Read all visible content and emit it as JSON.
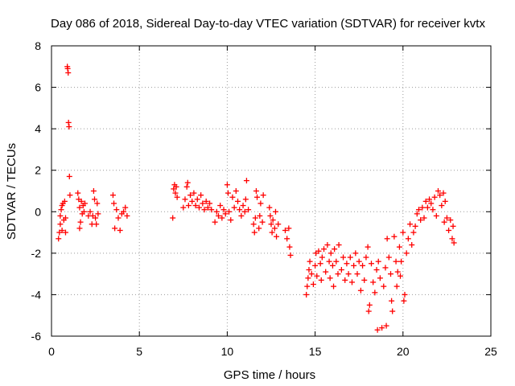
{
  "chart_data": {
    "type": "scatter",
    "title": "Day 086 of 2018, Sidereal Day-to-day VTEC variation (SDTVAR) for receiver kvtx",
    "xlabel": "GPS time / hours",
    "ylabel": "SDTVAR / TECUs",
    "xlim": [
      0,
      25
    ],
    "ylim": [
      -6,
      8
    ],
    "xticks": [
      0,
      5,
      10,
      15,
      20,
      25
    ],
    "yticks": [
      -6,
      -4,
      -2,
      0,
      2,
      4,
      6,
      8
    ],
    "grid": true,
    "marker": "+",
    "color": "#ff0000",
    "series": [
      {
        "name": "SDTVAR",
        "points": [
          [
            0.4,
            -1.3
          ],
          [
            0.45,
            -1.0
          ],
          [
            0.5,
            -0.6
          ],
          [
            0.5,
            -0.2
          ],
          [
            0.55,
            0.1
          ],
          [
            0.6,
            0.3
          ],
          [
            0.6,
            -0.9
          ],
          [
            0.65,
            0.4
          ],
          [
            0.7,
            -0.4
          ],
          [
            0.75,
            0.5
          ],
          [
            0.8,
            -1.0
          ],
          [
            0.8,
            -0.3
          ],
          [
            0.9,
            7.0
          ],
          [
            0.92,
            6.9
          ],
          [
            0.95,
            6.7
          ],
          [
            0.97,
            4.3
          ],
          [
            1.0,
            4.1
          ],
          [
            1.02,
            1.7
          ],
          [
            1.05,
            0.8
          ],
          [
            1.5,
            0.9
          ],
          [
            1.55,
            0.6
          ],
          [
            1.6,
            0.2
          ],
          [
            1.6,
            -0.8
          ],
          [
            1.65,
            -0.5
          ],
          [
            1.7,
            0.5
          ],
          [
            1.75,
            -0.1
          ],
          [
            1.8,
            0.3
          ],
          [
            1.85,
            0.0
          ],
          [
            1.9,
            0.4
          ],
          [
            2.1,
            -0.2
          ],
          [
            2.2,
            0.0
          ],
          [
            2.3,
            -0.6
          ],
          [
            2.35,
            -0.2
          ],
          [
            2.4,
            1.0
          ],
          [
            2.45,
            0.6
          ],
          [
            2.5,
            -0.3
          ],
          [
            2.55,
            -0.6
          ],
          [
            2.6,
            0.4
          ],
          [
            2.65,
            -0.1
          ],
          [
            3.5,
            0.8
          ],
          [
            3.55,
            0.4
          ],
          [
            3.6,
            -0.8
          ],
          [
            3.7,
            0.1
          ],
          [
            3.8,
            -0.3
          ],
          [
            3.9,
            -0.9
          ],
          [
            4.0,
            -0.1
          ],
          [
            4.1,
            0.0
          ],
          [
            4.2,
            0.2
          ],
          [
            4.3,
            -0.2
          ],
          [
            6.9,
            -0.3
          ],
          [
            6.95,
            1.1
          ],
          [
            7.0,
            1.3
          ],
          [
            7.05,
            0.9
          ],
          [
            7.1,
            1.2
          ],
          [
            7.15,
            0.7
          ],
          [
            7.5,
            0.2
          ],
          [
            7.6,
            0.6
          ],
          [
            7.7,
            1.2
          ],
          [
            7.75,
            1.4
          ],
          [
            7.8,
            0.3
          ],
          [
            7.9,
            0.8
          ],
          [
            8.0,
            0.5
          ],
          [
            8.1,
            0.9
          ],
          [
            8.2,
            0.3
          ],
          [
            8.3,
            0.6
          ],
          [
            8.4,
            0.2
          ],
          [
            8.5,
            0.8
          ],
          [
            8.6,
            0.4
          ],
          [
            8.7,
            0.1
          ],
          [
            8.8,
            0.5
          ],
          [
            8.9,
            0.2
          ],
          [
            9.0,
            0.4
          ],
          [
            9.1,
            0.1
          ],
          [
            9.3,
            -0.5
          ],
          [
            9.4,
            0.0
          ],
          [
            9.5,
            -0.2
          ],
          [
            9.6,
            0.3
          ],
          [
            9.7,
            -0.3
          ],
          [
            9.8,
            0.1
          ],
          [
            9.9,
            -0.1
          ],
          [
            10.0,
            1.3
          ],
          [
            10.05,
            0.9
          ],
          [
            10.1,
            0.0
          ],
          [
            10.2,
            -0.4
          ],
          [
            10.3,
            0.7
          ],
          [
            10.4,
            0.2
          ],
          [
            10.5,
            1.0
          ],
          [
            10.6,
            0.5
          ],
          [
            10.7,
            0.1
          ],
          [
            10.8,
            -0.2
          ],
          [
            10.9,
            0.3
          ],
          [
            11.0,
            0.0
          ],
          [
            11.05,
            0.6
          ],
          [
            11.1,
            1.5
          ],
          [
            11.2,
            0.1
          ],
          [
            11.5,
            -0.6
          ],
          [
            11.55,
            -1.0
          ],
          [
            11.6,
            -0.3
          ],
          [
            11.65,
            1.0
          ],
          [
            11.7,
            0.7
          ],
          [
            11.8,
            -0.8
          ],
          [
            11.85,
            -0.2
          ],
          [
            11.9,
            0.4
          ],
          [
            12.0,
            -0.5
          ],
          [
            12.05,
            0.8
          ],
          [
            12.4,
            0.2
          ],
          [
            12.45,
            -0.2
          ],
          [
            12.5,
            -0.6
          ],
          [
            12.55,
            -1.0
          ],
          [
            12.6,
            -0.4
          ],
          [
            12.7,
            -0.8
          ],
          [
            12.75,
            0.0
          ],
          [
            12.8,
            -1.2
          ],
          [
            12.9,
            -0.6
          ],
          [
            13.3,
            -0.9
          ],
          [
            13.4,
            -1.3
          ],
          [
            13.5,
            -0.8
          ],
          [
            13.55,
            -1.7
          ],
          [
            13.6,
            -2.1
          ],
          [
            14.5,
            -4.0
          ],
          [
            14.55,
            -3.6
          ],
          [
            14.6,
            -3.2
          ],
          [
            14.65,
            -2.8
          ],
          [
            14.7,
            -2.4
          ],
          [
            14.8,
            -3.0
          ],
          [
            14.9,
            -3.5
          ],
          [
            15.0,
            -2.6
          ],
          [
            15.05,
            -2.0
          ],
          [
            15.1,
            -3.1
          ],
          [
            15.2,
            -1.9
          ],
          [
            15.3,
            -2.5
          ],
          [
            15.35,
            -3.3
          ],
          [
            15.4,
            -2.2
          ],
          [
            15.5,
            -1.8
          ],
          [
            15.6,
            -2.9
          ],
          [
            15.7,
            -1.6
          ],
          [
            15.8,
            -2.4
          ],
          [
            15.85,
            -3.2
          ],
          [
            15.9,
            -2.0
          ],
          [
            16.0,
            -2.6
          ],
          [
            16.05,
            -3.6
          ],
          [
            16.1,
            -1.8
          ],
          [
            16.2,
            -2.4
          ],
          [
            16.3,
            -3.0
          ],
          [
            16.35,
            -1.6
          ],
          [
            16.5,
            -2.8
          ],
          [
            16.6,
            -2.2
          ],
          [
            16.7,
            -3.3
          ],
          [
            16.8,
            -2.5
          ],
          [
            16.9,
            -3.0
          ],
          [
            17.0,
            -2.2
          ],
          [
            17.1,
            -3.4
          ],
          [
            17.2,
            -2.6
          ],
          [
            17.3,
            -2.0
          ],
          [
            17.4,
            -3.0
          ],
          [
            17.5,
            -2.4
          ],
          [
            17.6,
            -3.8
          ],
          [
            17.7,
            -2.6
          ],
          [
            17.8,
            -3.3
          ],
          [
            17.9,
            -2.2
          ],
          [
            18.0,
            -1.7
          ],
          [
            18.05,
            -4.8
          ],
          [
            18.1,
            -4.5
          ],
          [
            18.2,
            -2.5
          ],
          [
            18.3,
            -3.4
          ],
          [
            18.4,
            -3.9
          ],
          [
            18.5,
            -2.8
          ],
          [
            18.55,
            -5.7
          ],
          [
            18.6,
            -2.4
          ],
          [
            18.7,
            -3.2
          ],
          [
            18.8,
            -5.6
          ],
          [
            18.9,
            -3.6
          ],
          [
            19.0,
            -2.7
          ],
          [
            19.05,
            -5.5
          ],
          [
            19.1,
            -1.3
          ],
          [
            19.2,
            -2.2
          ],
          [
            19.3,
            -3.0
          ],
          [
            19.35,
            -4.3
          ],
          [
            19.4,
            -4.8
          ],
          [
            19.5,
            -1.2
          ],
          [
            19.6,
            -2.4
          ],
          [
            19.65,
            -3.6
          ],
          [
            19.7,
            -2.9
          ],
          [
            19.8,
            -1.7
          ],
          [
            19.85,
            -3.1
          ],
          [
            19.9,
            -2.4
          ],
          [
            20.0,
            -1.0
          ],
          [
            20.05,
            -4.3
          ],
          [
            20.1,
            -4.0
          ],
          [
            20.2,
            -2.0
          ],
          [
            20.3,
            -1.3
          ],
          [
            20.4,
            -0.6
          ],
          [
            20.5,
            -1.6
          ],
          [
            20.6,
            -1.0
          ],
          [
            20.7,
            -0.7
          ],
          [
            20.8,
            -0.1
          ],
          [
            20.9,
            0.1
          ],
          [
            21.0,
            -0.4
          ],
          [
            21.1,
            0.2
          ],
          [
            21.2,
            -0.3
          ],
          [
            21.3,
            0.5
          ],
          [
            21.4,
            0.2
          ],
          [
            21.5,
            0.6
          ],
          [
            21.6,
            0.4
          ],
          [
            21.7,
            0.1
          ],
          [
            21.8,
            0.7
          ],
          [
            21.9,
            -0.2
          ],
          [
            22.0,
            1.0
          ],
          [
            22.1,
            0.8
          ],
          [
            22.2,
            0.3
          ],
          [
            22.3,
            0.9
          ],
          [
            22.35,
            -0.5
          ],
          [
            22.4,
            0.5
          ],
          [
            22.5,
            -0.3
          ],
          [
            22.6,
            -0.9
          ],
          [
            22.7,
            -0.4
          ],
          [
            22.8,
            -1.3
          ],
          [
            22.85,
            -0.7
          ],
          [
            22.9,
            -1.5
          ]
        ]
      }
    ]
  }
}
